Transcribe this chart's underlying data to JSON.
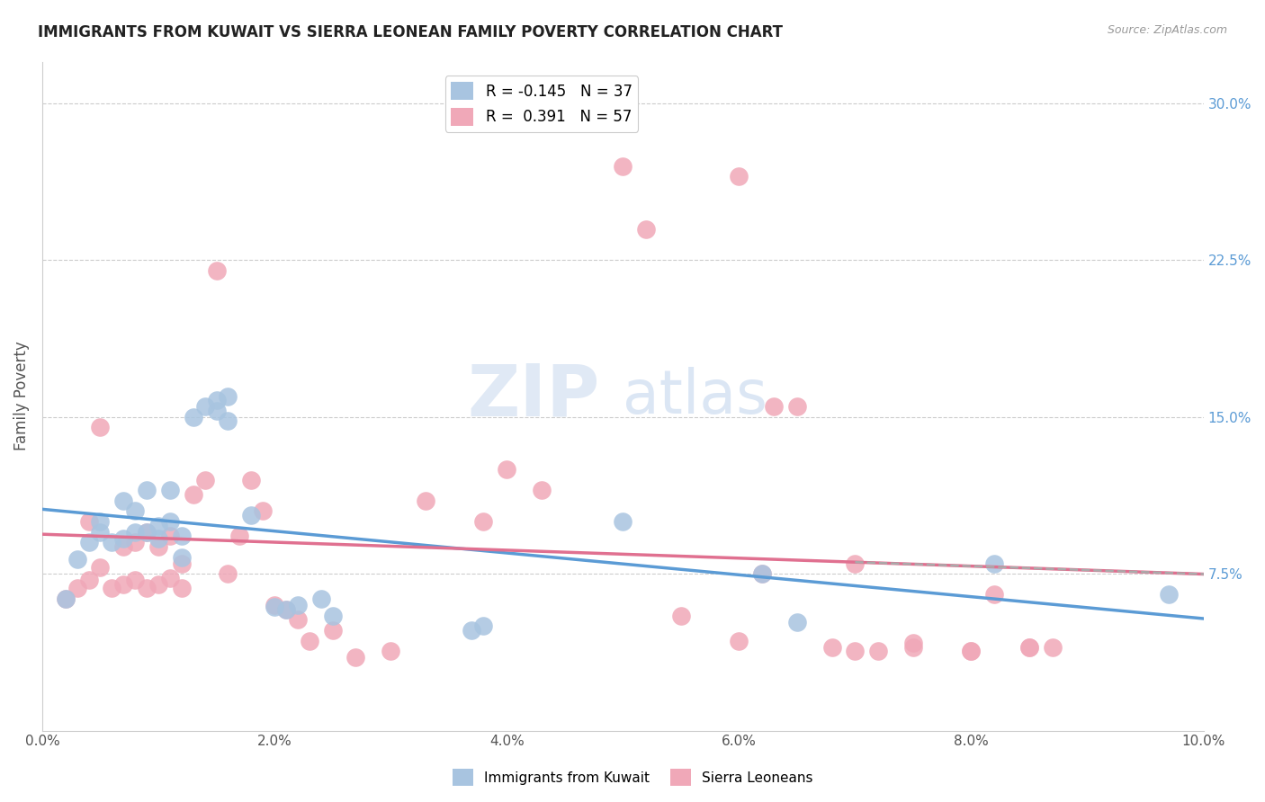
{
  "title": "IMMIGRANTS FROM KUWAIT VS SIERRA LEONEAN FAMILY POVERTY CORRELATION CHART",
  "source": "Source: ZipAtlas.com",
  "ylabel": "Family Poverty",
  "x_ticks": [
    0.0,
    0.02,
    0.04,
    0.06,
    0.08,
    0.1
  ],
  "y_ticks_right": [
    0.075,
    0.15,
    0.225,
    0.3
  ],
  "y_tick_labels_right": [
    "7.5%",
    "15.0%",
    "22.5%",
    "30.0%"
  ],
  "xlim": [
    0.0,
    0.1
  ],
  "ylim": [
    0.0,
    0.32
  ],
  "kuwait_R": -0.145,
  "kuwait_N": 37,
  "sierraleone_R": 0.391,
  "sierraleone_N": 57,
  "kuwait_color": "#a8c4e0",
  "sierraleone_color": "#f0a8b8",
  "kuwait_line_color": "#5b9bd5",
  "sierraleone_line_color": "#e07090",
  "watermark_part1": "ZIP",
  "watermark_part2": "atlas",
  "kuwait_points_x": [
    0.002,
    0.003,
    0.004,
    0.005,
    0.005,
    0.006,
    0.007,
    0.007,
    0.008,
    0.008,
    0.009,
    0.009,
    0.01,
    0.01,
    0.011,
    0.011,
    0.012,
    0.012,
    0.013,
    0.014,
    0.015,
    0.015,
    0.016,
    0.016,
    0.018,
    0.02,
    0.021,
    0.022,
    0.024,
    0.025,
    0.037,
    0.038,
    0.05,
    0.062,
    0.065,
    0.082,
    0.097
  ],
  "kuwait_points_y": [
    0.063,
    0.082,
    0.09,
    0.095,
    0.1,
    0.09,
    0.092,
    0.11,
    0.095,
    0.105,
    0.095,
    0.115,
    0.092,
    0.098,
    0.1,
    0.115,
    0.083,
    0.093,
    0.15,
    0.155,
    0.153,
    0.158,
    0.148,
    0.16,
    0.103,
    0.059,
    0.058,
    0.06,
    0.063,
    0.055,
    0.048,
    0.05,
    0.1,
    0.075,
    0.052,
    0.08,
    0.065
  ],
  "sl_points_x": [
    0.002,
    0.003,
    0.004,
    0.004,
    0.005,
    0.005,
    0.006,
    0.007,
    0.007,
    0.008,
    0.008,
    0.009,
    0.009,
    0.01,
    0.01,
    0.011,
    0.011,
    0.012,
    0.012,
    0.013,
    0.014,
    0.015,
    0.016,
    0.017,
    0.018,
    0.019,
    0.02,
    0.021,
    0.022,
    0.023,
    0.025,
    0.027,
    0.03,
    0.033,
    0.038,
    0.04,
    0.043,
    0.05,
    0.052,
    0.055,
    0.06,
    0.062,
    0.063,
    0.065,
    0.068,
    0.07,
    0.072,
    0.075,
    0.08,
    0.082,
    0.085,
    0.087,
    0.06,
    0.07,
    0.075,
    0.08,
    0.085
  ],
  "sl_points_y": [
    0.063,
    0.068,
    0.072,
    0.1,
    0.078,
    0.145,
    0.068,
    0.07,
    0.088,
    0.072,
    0.09,
    0.068,
    0.095,
    0.07,
    0.088,
    0.073,
    0.093,
    0.068,
    0.08,
    0.113,
    0.12,
    0.22,
    0.075,
    0.093,
    0.12,
    0.105,
    0.06,
    0.058,
    0.053,
    0.043,
    0.048,
    0.035,
    0.038,
    0.11,
    0.1,
    0.125,
    0.115,
    0.27,
    0.24,
    0.055,
    0.043,
    0.075,
    0.155,
    0.155,
    0.04,
    0.038,
    0.038,
    0.04,
    0.038,
    0.065,
    0.04,
    0.04,
    0.265,
    0.08,
    0.042,
    0.038,
    0.04
  ]
}
